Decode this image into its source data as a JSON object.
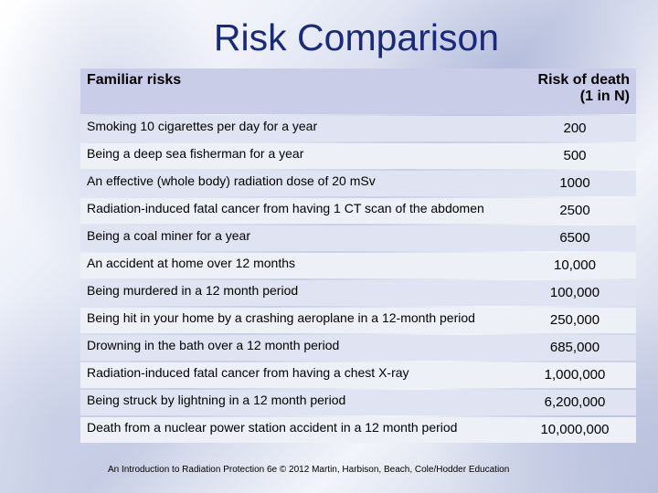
{
  "slide": {
    "title": "Risk Comparison",
    "footer": "An Introduction to Radiation Protection 6e © 2012 Martin, Harbison, Beach, Cole/Hodder Education"
  },
  "table": {
    "headers": {
      "risk": "Familiar risks",
      "death": "Risk of death\n(1 in N)"
    },
    "rows": [
      {
        "risk": "Smoking 10 cigarettes per day for a year",
        "value": "200"
      },
      {
        "risk": "Being a deep sea fisherman for a year",
        "value": "500"
      },
      {
        "risk": "An effective (whole body) radiation dose of 20 mSv",
        "value": "1000"
      },
      {
        "risk": "Radiation-induced fatal cancer from having 1 CT scan of the abdomen",
        "value": "2500"
      },
      {
        "risk": "Being a coal miner for a year",
        "value": "6500"
      },
      {
        "risk": "An accident at home over 12 months",
        "value": "10,000"
      },
      {
        "risk": "Being murdered in a 12 month period",
        "value": "100,000"
      },
      {
        "risk": "Being hit in your home by a crashing aeroplane in a 12-month period",
        "value": "250,000"
      },
      {
        "risk": "Drowning in the bath over a 12 month period",
        "value": "685,000"
      },
      {
        "risk": "Radiation-induced fatal cancer from having a chest X-ray",
        "value": "1,000,000"
      },
      {
        "risk": "Being struck by lightning in a 12 month period",
        "value": "6,200,000"
      },
      {
        "risk": "Death from a nuclear power station accident in a 12 month period",
        "value": "10,000,000"
      }
    ]
  }
}
